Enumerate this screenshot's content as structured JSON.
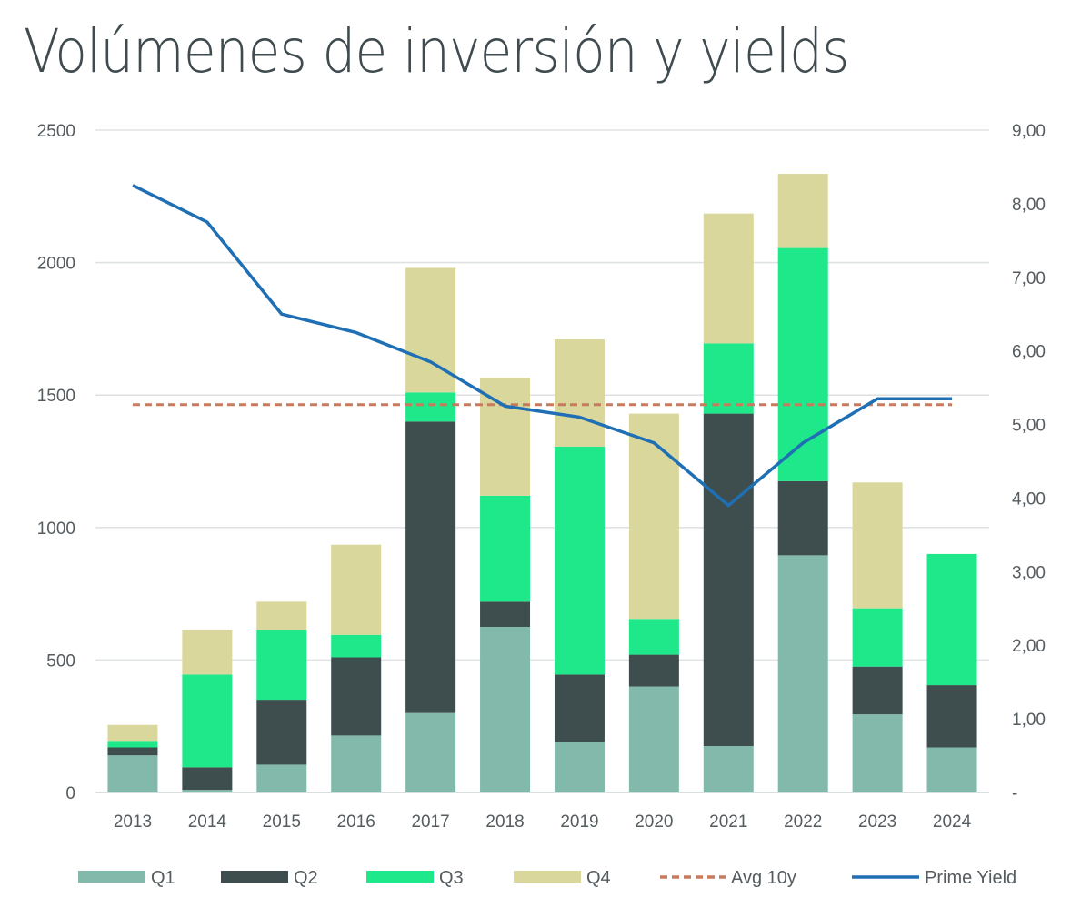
{
  "chart_data": {
    "type": "bar",
    "title": "Volúmenes de inversión y yields",
    "categories": [
      "2013",
      "2014",
      "2015",
      "2016",
      "2017",
      "2018",
      "2019",
      "2020",
      "2021",
      "2022",
      "2023",
      "2024"
    ],
    "series": [
      {
        "name": "Q1",
        "kind": "stacked-bar",
        "axis": "left",
        "color": "#82b9aa",
        "values": [
          140,
          10,
          105,
          215,
          300,
          625,
          190,
          400,
          175,
          895,
          295,
          170
        ]
      },
      {
        "name": "Q2",
        "kind": "stacked-bar",
        "axis": "left",
        "color": "#3e4e4f",
        "values": [
          30,
          85,
          245,
          295,
          1100,
          95,
          255,
          120,
          1255,
          280,
          180,
          235
        ]
      },
      {
        "name": "Q3",
        "kind": "stacked-bar",
        "axis": "left",
        "color": "#1ee88a",
        "values": [
          25,
          350,
          265,
          85,
          110,
          400,
          860,
          135,
          265,
          880,
          220,
          495
        ]
      },
      {
        "name": "Q4",
        "kind": "stacked-bar",
        "axis": "left",
        "color": "#d9d79c",
        "values": [
          60,
          170,
          105,
          340,
          470,
          445,
          405,
          775,
          490,
          280,
          475,
          0
        ]
      },
      {
        "name": "Avg 10y",
        "kind": "dashed-line",
        "axis": "right",
        "color": "#c87a5c",
        "values": [
          5.27,
          5.27,
          5.27,
          5.27,
          5.27,
          5.27,
          5.27,
          5.27,
          5.27,
          5.27,
          5.27,
          5.27
        ]
      },
      {
        "name": "Prime Yield",
        "kind": "line",
        "axis": "right",
        "color": "#1f6fb5",
        "values": [
          8.25,
          7.75,
          6.5,
          6.25,
          5.85,
          5.25,
          5.1,
          4.75,
          3.9,
          4.75,
          5.35,
          5.35
        ]
      }
    ],
    "left_axis": {
      "ylim": [
        0,
        2500
      ],
      "ticks": [
        "0",
        "500",
        "1000",
        "1500",
        "2000",
        "2500"
      ],
      "tick_values": [
        0,
        500,
        1000,
        1500,
        2000,
        2500
      ]
    },
    "right_axis": {
      "ylim": [
        0,
        9
      ],
      "ticks": [
        "-",
        "1,00",
        "2,00",
        "3,00",
        "4,00",
        "5,00",
        "6,00",
        "7,00",
        "8,00",
        "9,00"
      ],
      "tick_values": [
        0,
        1,
        2,
        3,
        4,
        5,
        6,
        7,
        8,
        9
      ]
    },
    "grid": true,
    "legend_position": "bottom"
  }
}
